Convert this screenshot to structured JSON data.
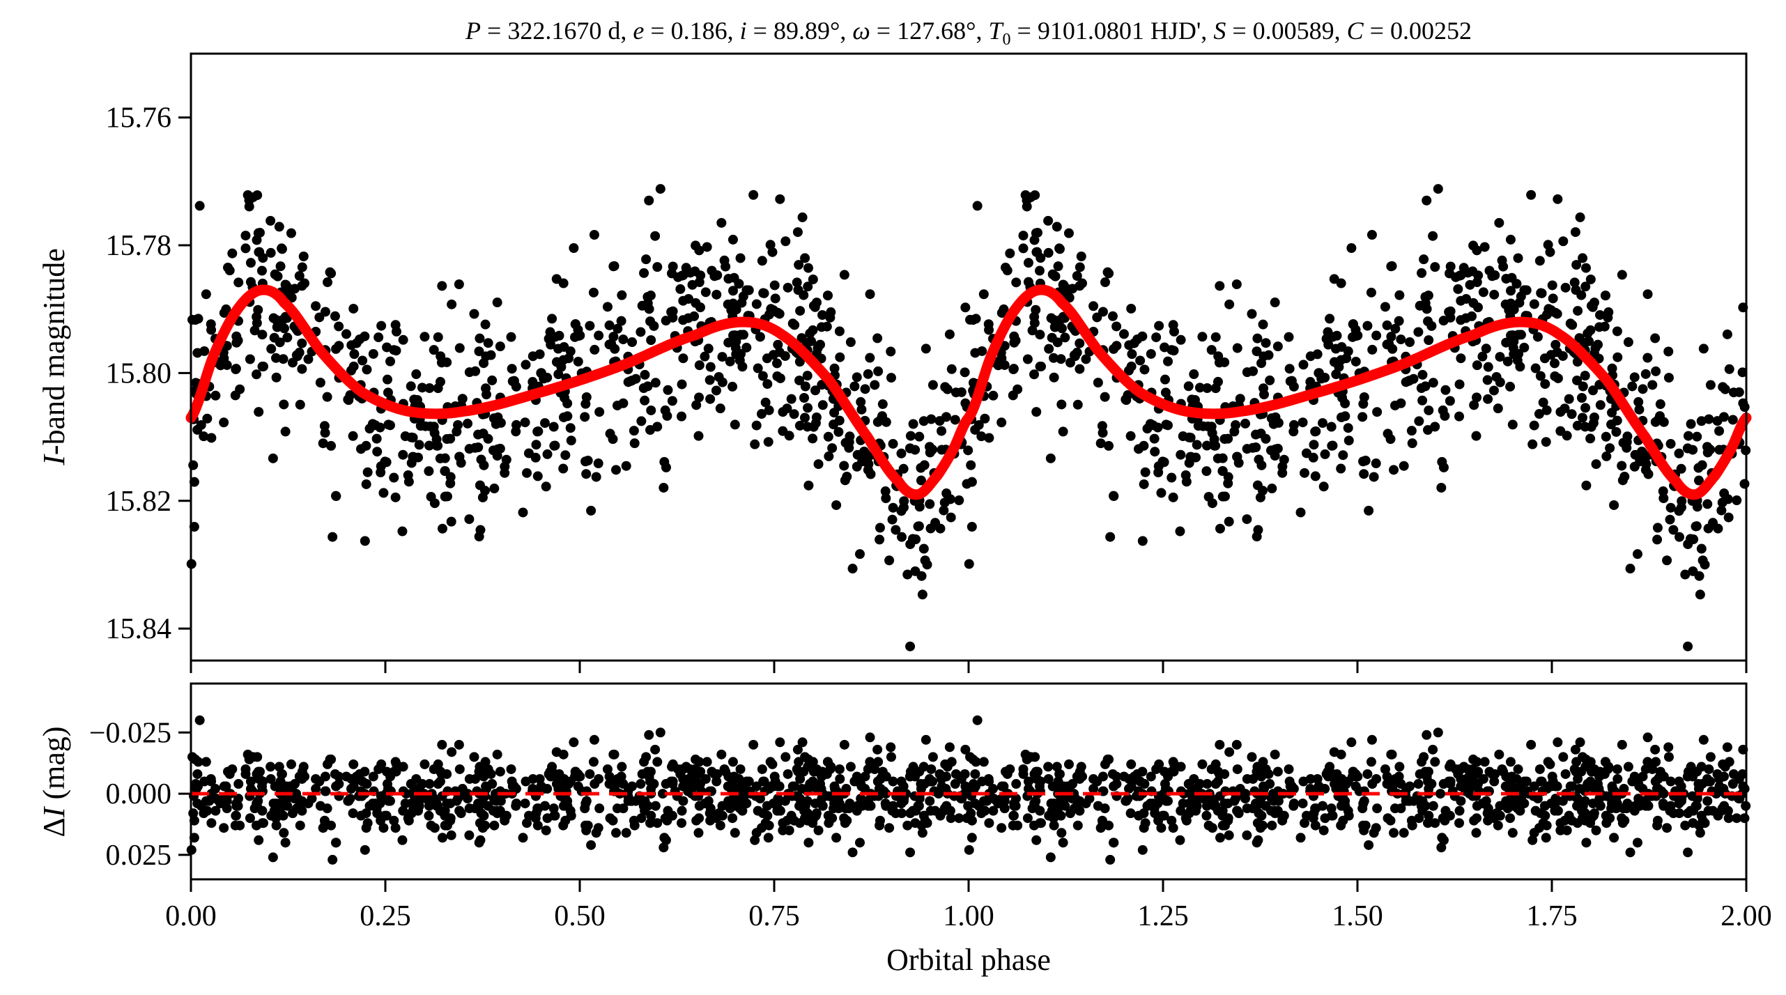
{
  "chart_data": {
    "type": "scatter",
    "title": "P = 322.1670 d, e = 0.186, i = 89.89°, ω = 127.68°, T0 = 9101.0801 HJD', S = 0.00589, C = 0.00252",
    "title_parts": {
      "P": "P",
      "P_val": " = 322.1670 d, ",
      "e": "e",
      "e_val": " = 0.186, ",
      "i": "i",
      "i_val": " = 89.89°, ",
      "w": "ω",
      "w_val": " = 127.68°, ",
      "T": "T",
      "T_sub": "0",
      "T_val": " = 9101.0801 HJD', ",
      "S": "S",
      "S_val": " = 0.00589, ",
      "C": "C",
      "C_val": " = 0.00252"
    },
    "xlabel": "Orbital phase",
    "xlim": [
      0,
      2
    ],
    "x_ticks": [
      "0.00",
      "0.25",
      "0.50",
      "0.75",
      "1.00",
      "1.25",
      "1.50",
      "1.75",
      "2.00"
    ],
    "top_panel": {
      "ylabel_italic": "I",
      "ylabel_rest": "-band magnitude",
      "ylim": [
        15.845,
        15.75
      ],
      "inverted": true,
      "y_ticks": [
        "15.76",
        "15.78",
        "15.80",
        "15.82",
        "15.84"
      ],
      "model_color": "#ff0000",
      "point_color": "#000000",
      "model_curve_one_cycle": [
        [
          0.0,
          15.807
        ],
        [
          0.03,
          15.797
        ],
        [
          0.06,
          15.79
        ],
        [
          0.09,
          15.787
        ],
        [
          0.12,
          15.789
        ],
        [
          0.17,
          15.797
        ],
        [
          0.22,
          15.803
        ],
        [
          0.28,
          15.806
        ],
        [
          0.35,
          15.806
        ],
        [
          0.45,
          15.803
        ],
        [
          0.55,
          15.799
        ],
        [
          0.65,
          15.794
        ],
        [
          0.71,
          15.792
        ],
        [
          0.76,
          15.794
        ],
        [
          0.82,
          15.801
        ],
        [
          0.87,
          15.81
        ],
        [
          0.91,
          15.817
        ],
        [
          0.935,
          15.819
        ],
        [
          0.96,
          15.816
        ],
        [
          0.98,
          15.812
        ],
        [
          1.0,
          15.807
        ]
      ],
      "observations": {
        "points_per_cycle": 850,
        "scatter_sigma_mag": 0.0085,
        "repeated_cycles": 2
      }
    },
    "bottom_panel": {
      "ylabel_delta": "Δ",
      "ylabel_italic": "I",
      "ylabel_rest": " (mag)",
      "ylim": [
        0.035,
        -0.045
      ],
      "inverted": true,
      "y_ticks": [
        "−0.025",
        "0.000",
        "0.025"
      ],
      "y_tick_values": [
        -0.025,
        0,
        0.025
      ],
      "zero_line_color": "#ff0000",
      "zero_line_style": "dashed"
    }
  }
}
